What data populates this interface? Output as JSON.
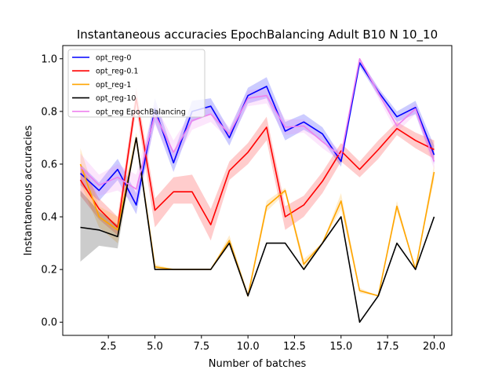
{
  "chart_data": {
    "type": "line",
    "title": "Instantaneous accuracies EpochBalancing Adult B10 N 10_10",
    "xlabel": "Number of batches",
    "ylabel": "Instantaneous accuracies",
    "xlim": [
      0.05,
      20.95
    ],
    "ylim": [
      -0.05,
      1.05
    ],
    "xticks": [
      2.5,
      5.0,
      7.5,
      10.0,
      12.5,
      15.0,
      17.5,
      20.0
    ],
    "xtick_labels": [
      "2.5",
      "5.0",
      "7.5",
      "10.0",
      "12.5",
      "15.0",
      "17.5",
      "20.0"
    ],
    "yticks": [
      0.0,
      0.2,
      0.4,
      0.6,
      0.8,
      1.0
    ],
    "ytick_labels": [
      "0.0",
      "0.2",
      "0.4",
      "0.6",
      "0.8",
      "1.0"
    ],
    "grid": false,
    "legend_position": "top-left",
    "x": [
      1,
      2,
      3,
      4,
      5,
      6,
      7,
      8,
      9,
      10,
      11,
      12,
      13,
      14,
      15,
      16,
      17,
      18,
      19,
      20
    ],
    "series": [
      {
        "name": "opt_reg-0",
        "color": "#0000ff",
        "values": [
          0.565,
          0.5,
          0.58,
          0.445,
          0.81,
          0.605,
          0.8,
          0.82,
          0.7,
          0.86,
          0.895,
          0.725,
          0.76,
          0.715,
          0.61,
          0.985,
          0.875,
          0.78,
          0.815,
          0.635
        ],
        "band_lower": [
          0.52,
          0.46,
          0.54,
          0.41,
          0.76,
          0.57,
          0.76,
          0.79,
          0.67,
          0.83,
          0.85,
          0.69,
          0.73,
          0.69,
          0.59,
          0.97,
          0.86,
          0.76,
          0.79,
          0.6
        ],
        "band_upper": [
          0.6,
          0.53,
          0.62,
          0.49,
          0.85,
          0.64,
          0.84,
          0.85,
          0.73,
          0.89,
          0.93,
          0.76,
          0.79,
          0.74,
          0.63,
          1.0,
          0.89,
          0.8,
          0.84,
          0.67
        ]
      },
      {
        "name": "opt_reg-0.1",
        "color": "#ff0000",
        "values": [
          0.54,
          0.43,
          0.36,
          0.85,
          0.425,
          0.495,
          0.495,
          0.37,
          0.575,
          0.645,
          0.74,
          0.4,
          0.445,
          0.535,
          0.65,
          0.58,
          0.655,
          0.735,
          0.69,
          0.655
        ],
        "band_lower": [
          0.48,
          0.39,
          0.33,
          0.81,
          0.36,
          0.45,
          0.45,
          0.31,
          0.54,
          0.6,
          0.69,
          0.35,
          0.4,
          0.49,
          0.61,
          0.55,
          0.62,
          0.71,
          0.66,
          0.62
        ],
        "band_upper": [
          0.6,
          0.47,
          0.4,
          0.89,
          0.47,
          0.55,
          0.56,
          0.43,
          0.61,
          0.68,
          0.78,
          0.44,
          0.48,
          0.57,
          0.68,
          0.61,
          0.69,
          0.76,
          0.72,
          0.69
        ]
      },
      {
        "name": "opt_reg-1",
        "color": "#ffa500",
        "values": [
          0.6,
          0.4,
          0.35,
          0.7,
          0.21,
          0.2,
          0.2,
          0.2,
          0.31,
          0.1,
          0.44,
          0.5,
          0.22,
          0.3,
          0.46,
          0.12,
          0.1,
          0.44,
          0.2,
          0.57
        ],
        "band_lower": [
          0.53,
          0.36,
          0.3,
          0.68,
          0.2,
          0.2,
          0.2,
          0.2,
          0.29,
          0.09,
          0.42,
          0.49,
          0.2,
          0.3,
          0.43,
          0.11,
          0.1,
          0.42,
          0.2,
          0.54
        ],
        "band_upper": [
          0.66,
          0.44,
          0.4,
          0.72,
          0.22,
          0.2,
          0.2,
          0.2,
          0.33,
          0.11,
          0.46,
          0.51,
          0.24,
          0.3,
          0.49,
          0.13,
          0.1,
          0.46,
          0.2,
          0.6
        ]
      },
      {
        "name": "opt_reg-10",
        "color": "#000000",
        "values": [
          0.36,
          0.35,
          0.325,
          0.7,
          0.2,
          0.2,
          0.2,
          0.2,
          0.3,
          0.1,
          0.3,
          0.3,
          0.2,
          0.3,
          0.4,
          0.0,
          0.1,
          0.3,
          0.2,
          0.4
        ],
        "band_lower": [
          0.23,
          0.29,
          0.28,
          0.7,
          0.2,
          0.2,
          0.2,
          0.2,
          0.3,
          0.1,
          0.3,
          0.3,
          0.2,
          0.3,
          0.4,
          0.0,
          0.1,
          0.3,
          0.2,
          0.4
        ],
        "band_upper": [
          0.5,
          0.42,
          0.37,
          0.7,
          0.2,
          0.2,
          0.2,
          0.2,
          0.3,
          0.1,
          0.3,
          0.3,
          0.2,
          0.3,
          0.4,
          0.0,
          0.1,
          0.3,
          0.2,
          0.4
        ]
      },
      {
        "name": "opt_reg EpochBalancing",
        "color": "#ee82ee",
        "values": [
          0.59,
          0.52,
          0.55,
          0.505,
          0.79,
          0.645,
          0.765,
          0.79,
          0.715,
          0.85,
          0.86,
          0.74,
          0.745,
          0.685,
          0.63,
          1.0,
          0.87,
          0.745,
          0.81,
          0.61
        ],
        "band_lower": [
          0.54,
          0.48,
          0.5,
          0.45,
          0.75,
          0.6,
          0.73,
          0.76,
          0.69,
          0.82,
          0.83,
          0.71,
          0.72,
          0.66,
          0.61,
          0.99,
          0.85,
          0.72,
          0.79,
          0.58
        ],
        "band_upper": [
          0.64,
          0.56,
          0.6,
          0.56,
          0.83,
          0.69,
          0.8,
          0.82,
          0.74,
          0.88,
          0.89,
          0.77,
          0.77,
          0.71,
          0.65,
          1.0,
          0.89,
          0.77,
          0.83,
          0.64
        ]
      }
    ]
  }
}
